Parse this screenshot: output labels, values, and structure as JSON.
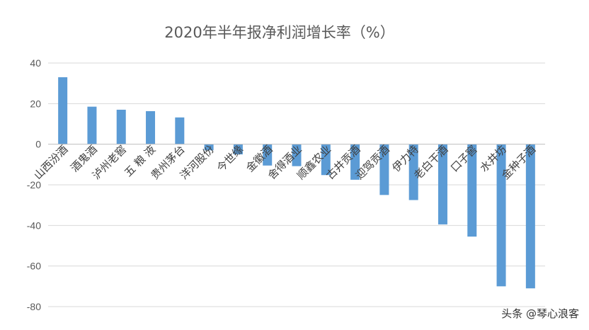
{
  "chart_data": {
    "type": "bar",
    "title": "2020年半年报净利润增长率（%）",
    "xlabel": "",
    "ylabel": "",
    "ylim": [
      -80,
      40
    ],
    "yticks": [
      40,
      20,
      0,
      -20,
      -40,
      -60,
      -80
    ],
    "grid": true,
    "legend": "none",
    "bar_color": "#5b9bd5",
    "categories": [
      "山西汾酒",
      "酒鬼酒",
      "泸州老窖",
      "五 粮 液",
      "贵州茅台",
      "洋河股份",
      "今世缘",
      "金徽酒",
      "舍得酒业",
      "顺鑫农业",
      "古井贡酒",
      "迎驾贡酒",
      "伊力特",
      "老白干酒",
      "口子窖",
      "水井坊",
      "金种子酒"
    ],
    "values": [
      33,
      18.5,
      17,
      16.3,
      13.2,
      -3,
      -5,
      -10.5,
      -10.8,
      -15.2,
      -17.5,
      -25,
      -27.5,
      -39.5,
      -45.5,
      -70,
      -71
    ]
  },
  "watermark": "头条 @琴心浪客"
}
